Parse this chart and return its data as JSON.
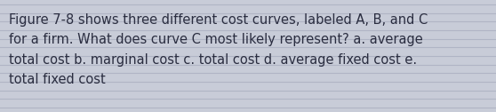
{
  "text": "Figure 7-8 shows three different cost curves, labeled A, B, and C\nfor a firm. What does curve C most likely represent? a. average\ntotal cost b. marginal cost c. total cost d. average fixed cost e.\ntotal fixed cost",
  "background_color": "#c8ccd8",
  "line_color": "#b0b5c5",
  "line_color2": "#d8dce8",
  "text_color": "#2a2d40",
  "font_size": 10.5,
  "fig_width": 5.58,
  "fig_height": 1.26,
  "num_lines": 13
}
